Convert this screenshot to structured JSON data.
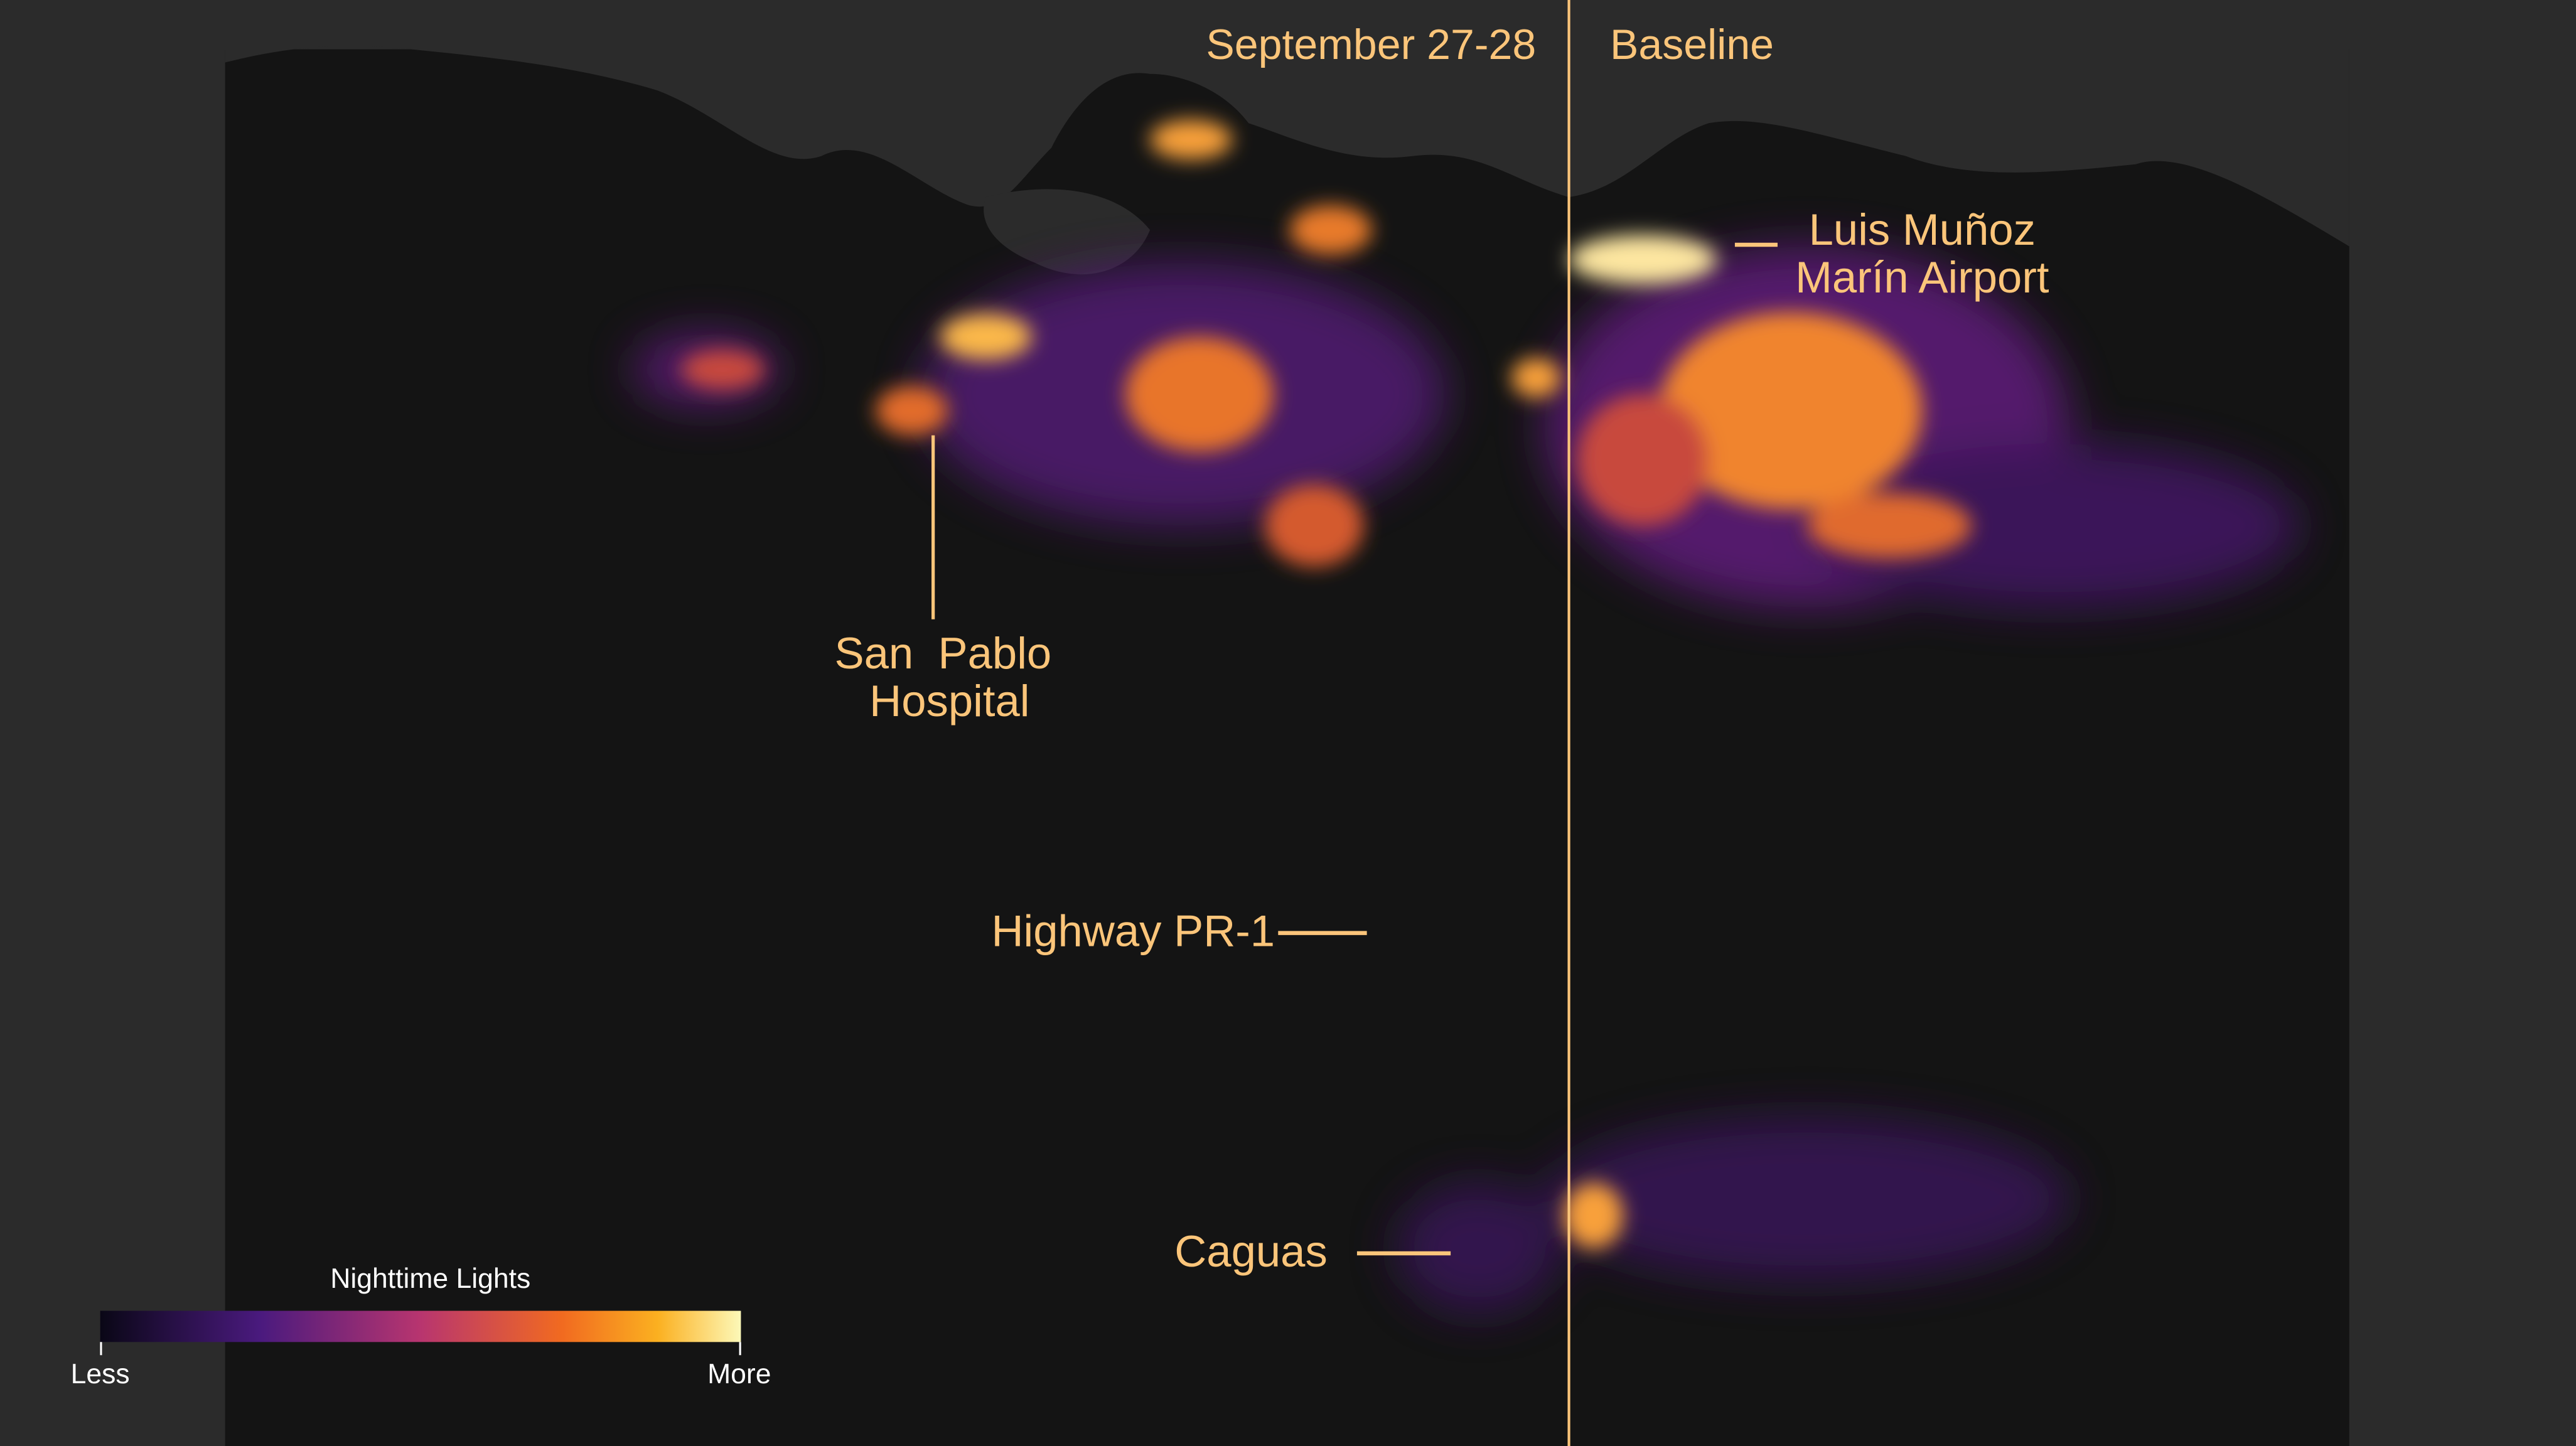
{
  "panels": {
    "left": {
      "title": "September 27-28"
    },
    "right": {
      "title": "Baseline"
    }
  },
  "annotations": {
    "airport": {
      "lines": [
        "Luis Muñoz",
        "Marín Airport"
      ]
    },
    "hospital": {
      "lines": [
        "San  Pablo",
        "Hospital"
      ]
    },
    "highway": {
      "label": "Highway PR-1"
    },
    "caguas": {
      "label": "Caguas"
    }
  },
  "legend": {
    "title": "Nighttime Lights",
    "low": "Less",
    "high": "More"
  }
}
